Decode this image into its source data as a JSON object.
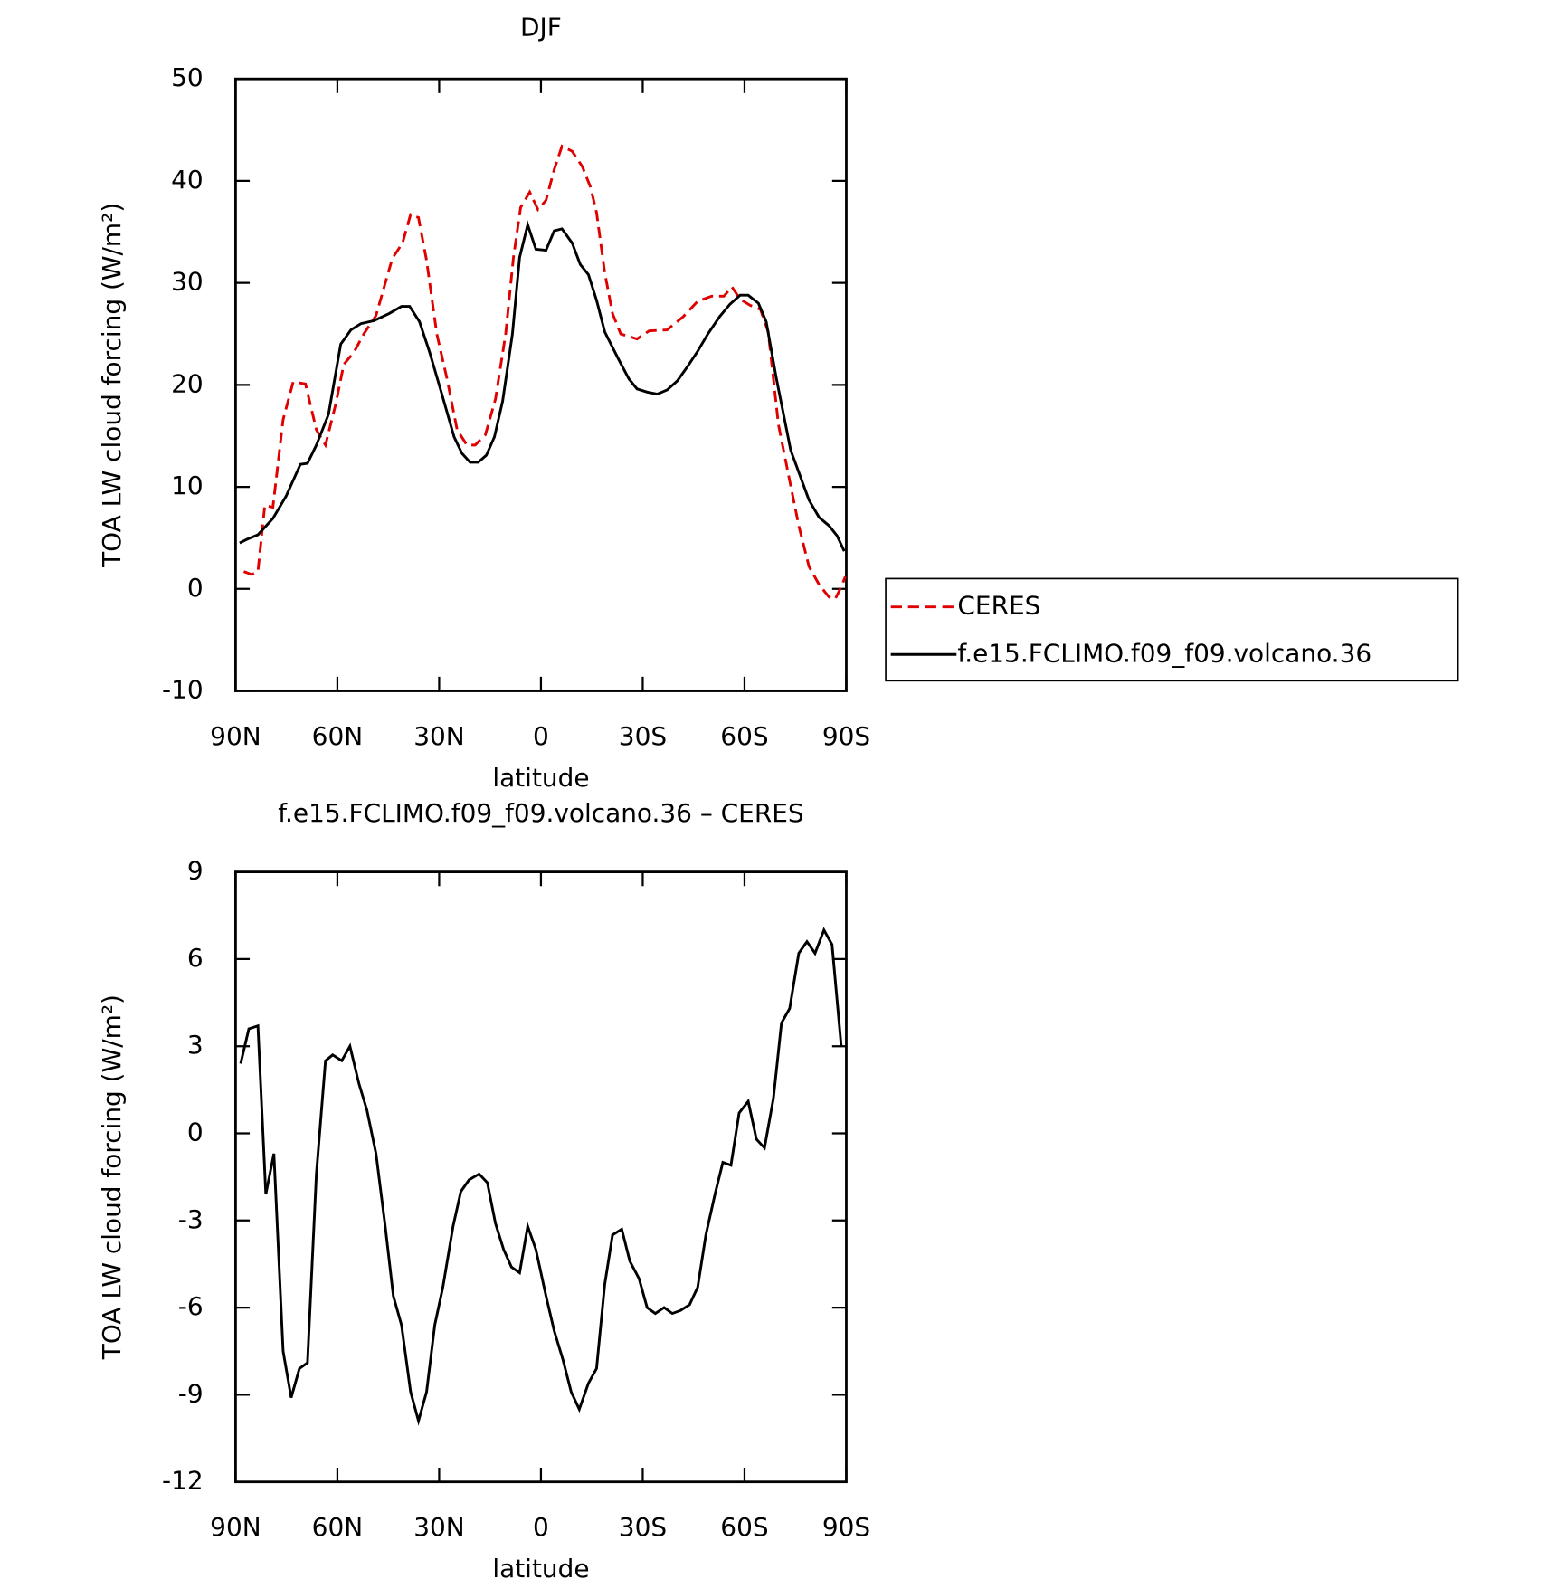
{
  "chart_data": [
    {
      "type": "line",
      "title": "DJF",
      "xlabel": "latitude",
      "ylabel": "TOA LW cloud forcing (W/m²)",
      "xlim": [
        90,
        -90
      ],
      "xticks": [
        {
          "value": 90,
          "label": "90N"
        },
        {
          "value": 60,
          "label": "60N"
        },
        {
          "value": 30,
          "label": "30N"
        },
        0,
        {
          "value": -30,
          "label": "30S"
        },
        {
          "value": -60,
          "label": "60S"
        },
        {
          "value": -90,
          "label": "90S"
        }
      ],
      "ylim": [
        -10,
        50
      ],
      "yticks": [
        -10,
        0,
        10,
        20,
        30,
        40,
        50
      ],
      "legend": "right",
      "series": [
        {
          "name": "CERES",
          "color": "#e00000",
          "dash": "dashed",
          "x": [
            87.6,
            85.2,
            83.4,
            81.4,
            79.0,
            76.0,
            73.0,
            69.4,
            66.2,
            63.5,
            60.5,
            58.1,
            55.1,
            52.2,
            48.6,
            43.8,
            40.8,
            38.4,
            36.1,
            33.7,
            30.7,
            27.7,
            24.7,
            21.8,
            19.4,
            16.4,
            13.4,
            10.4,
            8.1,
            6.0,
            3.3,
            0.9,
            -1.5,
            -3.9,
            -6.2,
            -9.2,
            -12.2,
            -14.6,
            -16.4,
            -18.8,
            -21.1,
            -23.5,
            -28.3,
            -31.9,
            -37.2,
            -42.0,
            -46.2,
            -50.3,
            -53.9,
            -56.3,
            -58.7,
            -61.7,
            -64.7,
            -67.0,
            -70.0,
            -73.0,
            -76.0,
            -79.0,
            -82.0,
            -84.9,
            -86.7,
            -88.5,
            -89.7
          ],
          "values": [
            1.7,
            1.4,
            1.7,
            8.2,
            8.0,
            16.6,
            20.3,
            20.1,
            15.6,
            14.1,
            18.1,
            22.0,
            23.2,
            25.0,
            26.8,
            32.4,
            33.9,
            36.7,
            36.4,
            32.2,
            25.0,
            20.6,
            15.6,
            14.1,
            14.1,
            15.1,
            18.6,
            25.0,
            32.5,
            37.4,
            38.9,
            37.2,
            38.1,
            41.1,
            43.4,
            42.9,
            41.4,
            39.4,
            36.9,
            31.0,
            27.0,
            25.0,
            24.5,
            25.3,
            25.4,
            26.7,
            28.2,
            28.7,
            28.7,
            29.6,
            28.4,
            27.8,
            27.4,
            25.2,
            16.1,
            11.1,
            6.2,
            2.2,
            0.4,
            -0.8,
            -1.0,
            0.2,
            1.2
          ]
        },
        {
          "name": "f.e15.FCLIMO.f09_f09.volcano.36",
          "color": "#000000",
          "dash": "solid",
          "x": [
            88.8,
            86.4,
            83.4,
            79.0,
            75.1,
            70.9,
            68.8,
            66.2,
            62.6,
            59.0,
            56.0,
            53.1,
            49.2,
            44.7,
            41.1,
            38.7,
            35.8,
            32.8,
            29.2,
            25.6,
            23.3,
            20.9,
            18.5,
            16.1,
            13.7,
            11.3,
            8.4,
            6.3,
            3.9,
            1.5,
            -1.5,
            -3.9,
            -6.2,
            -9.2,
            -11.6,
            -14.0,
            -16.4,
            -18.8,
            -22.9,
            -25.9,
            -28.3,
            -31.3,
            -34.3,
            -37.2,
            -40.2,
            -43.2,
            -46.2,
            -49.2,
            -52.7,
            -55.7,
            -58.7,
            -61.1,
            -64.1,
            -66.4,
            -69.4,
            -73.6,
            -79.0,
            -82.0,
            -84.9,
            -87.3,
            -89.4
          ],
          "values": [
            4.5,
            4.9,
            5.3,
            6.9,
            9.1,
            12.2,
            12.3,
            14.1,
            17.1,
            24.0,
            25.4,
            26.0,
            26.3,
            27.0,
            27.7,
            27.7,
            26.2,
            23.2,
            19.1,
            14.9,
            13.3,
            12.4,
            12.4,
            13.1,
            14.9,
            18.4,
            25.0,
            32.5,
            35.7,
            33.3,
            33.2,
            35.1,
            35.3,
            33.9,
            31.8,
            30.8,
            28.3,
            25.2,
            22.5,
            20.6,
            19.6,
            19.3,
            19.1,
            19.5,
            20.4,
            21.8,
            23.3,
            25.0,
            26.7,
            27.9,
            28.8,
            28.8,
            28.0,
            26.2,
            20.6,
            13.6,
            8.7,
            7.0,
            6.2,
            5.2,
            3.7
          ]
        }
      ]
    },
    {
      "type": "line",
      "title": "f.e15.FCLIMO.f09_f09.volcano.36 – CERES",
      "xlabel": "latitude",
      "ylabel": "TOA LW cloud forcing (W/m²)",
      "xlim": [
        90,
        -90
      ],
      "xticks": [
        {
          "value": 90,
          "label": "90N"
        },
        {
          "value": 60,
          "label": "60N"
        },
        {
          "value": 30,
          "label": "30N"
        },
        0,
        {
          "value": -30,
          "label": "30S"
        },
        {
          "value": -60,
          "label": "60S"
        },
        {
          "value": -90,
          "label": "90S"
        }
      ],
      "ylim": [
        -12,
        9
      ],
      "yticks": [
        -12,
        -9,
        -6,
        -3,
        0,
        3,
        6,
        9
      ],
      "series": [
        {
          "color": "#000000",
          "dash": "solid",
          "x": [
            88.5,
            86.1,
            83.4,
            81.1,
            78.7,
            76.0,
            73.6,
            71.2,
            68.8,
            66.2,
            63.5,
            61.4,
            58.7,
            56.3,
            53.6,
            51.3,
            48.6,
            45.9,
            43.5,
            41.1,
            38.4,
            36.1,
            33.7,
            31.3,
            28.9,
            25.9,
            23.6,
            21.2,
            18.2,
            15.8,
            13.4,
            11.0,
            8.7,
            6.3,
            3.9,
            1.5,
            -1.5,
            -3.9,
            -6.5,
            -8.9,
            -11.3,
            -14.0,
            -16.4,
            -18.8,
            -21.1,
            -23.8,
            -26.2,
            -28.9,
            -31.3,
            -33.7,
            -36.3,
            -38.7,
            -41.1,
            -43.8,
            -46.2,
            -48.6,
            -51.3,
            -53.6,
            -56.0,
            -58.4,
            -61.1,
            -63.5,
            -65.9,
            -68.5,
            -70.9,
            -73.3,
            -76.0,
            -78.4,
            -80.8,
            -83.4,
            -85.8,
            -88.5
          ],
          "values": [
            2.4,
            3.6,
            3.7,
            -2.1,
            -0.7,
            -7.5,
            -9.1,
            -8.1,
            -7.9,
            -1.4,
            2.5,
            2.7,
            2.5,
            3.0,
            1.7,
            0.8,
            -0.7,
            -3.2,
            -5.6,
            -6.6,
            -8.9,
            -9.9,
            -8.9,
            -6.6,
            -5.3,
            -3.2,
            -2.0,
            -1.6,
            -1.4,
            -1.7,
            -3.1,
            -4.0,
            -4.6,
            -4.8,
            -3.2,
            -4.0,
            -5.6,
            -6.8,
            -7.8,
            -8.9,
            -9.5,
            -8.6,
            -8.1,
            -5.2,
            -3.5,
            -3.3,
            -4.4,
            -5.0,
            -6.0,
            -6.2,
            -6.0,
            -6.2,
            -6.1,
            -5.9,
            -5.3,
            -3.5,
            -2.1,
            -1.0,
            -1.1,
            0.7,
            1.1,
            -0.2,
            -0.5,
            1.2,
            3.8,
            4.3,
            6.2,
            6.6,
            6.2,
            7.0,
            6.5,
            3.0
          ]
        }
      ]
    }
  ]
}
